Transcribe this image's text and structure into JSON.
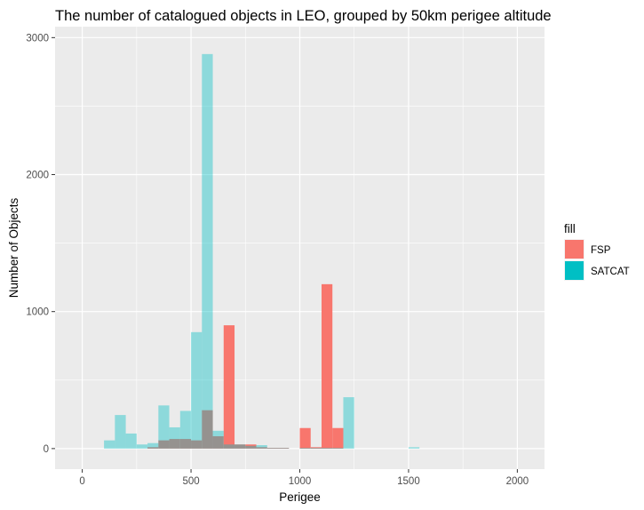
{
  "chart_data": {
    "type": "histogram",
    "title": "The number of catalogued objects in LEO, grouped by 50km perigee altitude",
    "xlabel": "Perigee",
    "ylabel": "Number of Objects",
    "xlim": [
      -125,
      2125
    ],
    "ylim": [
      -150,
      3080
    ],
    "x_ticks": [
      0,
      500,
      1000,
      1500,
      2000
    ],
    "y_ticks": [
      0,
      1000,
      2000,
      3000
    ],
    "bin_width": 50,
    "grid": true,
    "legend": {
      "title": "fill",
      "position": "right"
    },
    "series": [
      {
        "name": "FSP",
        "color": "#F8766D",
        "opacity": 1.0,
        "bins": [
          {
            "x0": 300,
            "value": 10
          },
          {
            "x0": 350,
            "value": 60
          },
          {
            "x0": 400,
            "value": 70
          },
          {
            "x0": 450,
            "value": 70
          },
          {
            "x0": 500,
            "value": 60
          },
          {
            "x0": 550,
            "value": 280
          },
          {
            "x0": 600,
            "value": 90
          },
          {
            "x0": 650,
            "value": 900
          },
          {
            "x0": 700,
            "value": 30
          },
          {
            "x0": 750,
            "value": 30
          },
          {
            "x0": 800,
            "value": 10
          },
          {
            "x0": 850,
            "value": 5
          },
          {
            "x0": 900,
            "value": 5
          },
          {
            "x0": 1000,
            "value": 150
          },
          {
            "x0": 1050,
            "value": 10
          },
          {
            "x0": 1100,
            "value": 1200
          },
          {
            "x0": 1150,
            "value": 150
          }
        ]
      },
      {
        "name": "SATCAT",
        "color": "#00BFC4",
        "opacity": 0.4,
        "bins": [
          {
            "x0": 100,
            "value": 60
          },
          {
            "x0": 150,
            "value": 245
          },
          {
            "x0": 200,
            "value": 110
          },
          {
            "x0": 250,
            "value": 30
          },
          {
            "x0": 300,
            "value": 40
          },
          {
            "x0": 350,
            "value": 315
          },
          {
            "x0": 400,
            "value": 155
          },
          {
            "x0": 450,
            "value": 275
          },
          {
            "x0": 500,
            "value": 850
          },
          {
            "x0": 550,
            "value": 2880
          },
          {
            "x0": 600,
            "value": 130
          },
          {
            "x0": 650,
            "value": 30
          },
          {
            "x0": 700,
            "value": 30
          },
          {
            "x0": 750,
            "value": 20
          },
          {
            "x0": 800,
            "value": 25
          },
          {
            "x0": 850,
            "value": 5
          },
          {
            "x0": 900,
            "value": 5
          },
          {
            "x0": 1000,
            "value": 5
          },
          {
            "x0": 1050,
            "value": 5
          },
          {
            "x0": 1100,
            "value": 5
          },
          {
            "x0": 1150,
            "value": 5
          },
          {
            "x0": 1200,
            "value": 375
          },
          {
            "x0": 1500,
            "value": 10
          }
        ]
      }
    ]
  }
}
